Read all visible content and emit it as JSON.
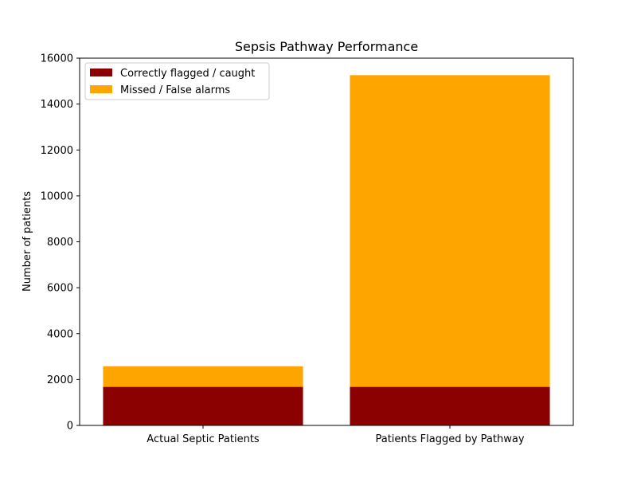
{
  "chart_data": {
    "type": "bar",
    "stacked": true,
    "title": "Sepsis Pathway Performance",
    "xlabel": "",
    "ylabel": "Number of patients",
    "categories": [
      "Actual Septic Patients",
      "Patients Flagged by Pathway"
    ],
    "series": [
      {
        "name": "Correctly flagged / caught",
        "color": "#8b0000",
        "values": [
          1680,
          1680
        ]
      },
      {
        "name": "Missed / False alarms",
        "color": "#ffa500",
        "values": [
          900,
          13580
        ]
      }
    ],
    "ylim": [
      0,
      16000
    ],
    "yticks": [
      "0",
      "2000",
      "4000",
      "6000",
      "8000",
      "10000",
      "12000",
      "14000",
      "16000"
    ],
    "grid": false,
    "legend_position": "top-left"
  }
}
